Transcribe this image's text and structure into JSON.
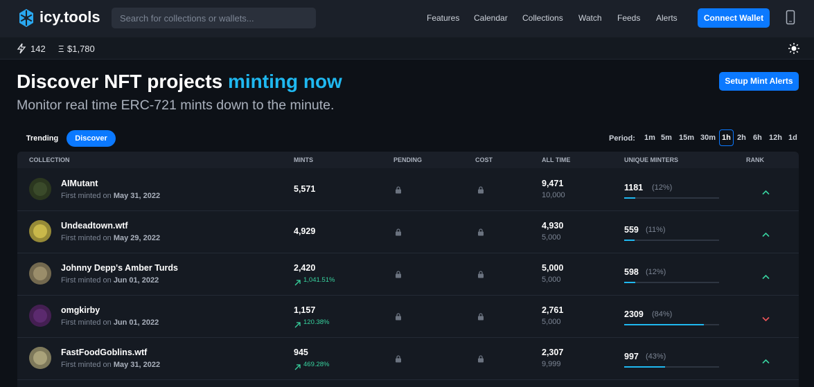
{
  "nav": {
    "logo": "icy.tools",
    "search_placeholder": "Search for collections or wallets...",
    "links": [
      "Features",
      "Calendar",
      "Collections",
      "Watch",
      "Feeds",
      "Alerts"
    ],
    "button": "Connect Wallet"
  },
  "stats": {
    "gas": "142",
    "eth_symbol": "Ξ",
    "eth_price": "$1,780"
  },
  "hero": {
    "title": "Discover NFT projects",
    "highlight": "minting now",
    "subtitle": "Monitor real time ERC-721 mints down to the minute.",
    "button": "Setup Mint Alerts"
  },
  "tabs": {
    "items": [
      "Trending",
      "Discover"
    ],
    "active": 1
  },
  "period": {
    "label": "Period:",
    "options": [
      "1m",
      "5m",
      "15m",
      "30m",
      "1h",
      "2h",
      "6h",
      "12h",
      "1d"
    ],
    "active": 4
  },
  "table": {
    "columns": [
      "COLLECTION",
      "MINTS",
      "PENDING",
      "COST",
      "ALL TIME",
      "UNIQUE MINTERS",
      "RANK"
    ],
    "rows": [
      {
        "name": "AIMutant",
        "first_prefix": "First minted on",
        "date": "May 31, 2022",
        "mints": "5,571",
        "change": null,
        "all_time": "9,471",
        "supply": "10,000",
        "minters": "1181",
        "pct": 12,
        "pct_label": "(12%)",
        "rank": "up",
        "avatar": "#3a4a2a"
      },
      {
        "name": "Undeadtown.wtf",
        "first_prefix": "First minted on",
        "date": "May 29, 2022",
        "mints": "4,929",
        "change": null,
        "all_time": "4,930",
        "supply": "5,000",
        "minters": "559",
        "pct": 11,
        "pct_label": "(11%)",
        "rank": "up",
        "avatar": "#c9b84a"
      },
      {
        "name": "Johnny Depp's Amber Turds",
        "first_prefix": "First minted on",
        "date": "Jun 01, 2022",
        "mints": "2,420",
        "change": "1,041.51%",
        "all_time": "5,000",
        "supply": "5,000",
        "minters": "598",
        "pct": 12,
        "pct_label": "(12%)",
        "rank": "up",
        "avatar": "#9a8d6a"
      },
      {
        "name": "omgkirby",
        "first_prefix": "First minted on",
        "date": "Jun 01, 2022",
        "mints": "1,157",
        "change": "120.38%",
        "all_time": "2,761",
        "supply": "5,000",
        "minters": "2309",
        "pct": 84,
        "pct_label": "(84%)",
        "rank": "down",
        "avatar": "#5b2a6e"
      },
      {
        "name": "FastFoodGoblins.wtf",
        "first_prefix": "First minted on",
        "date": "May 31, 2022",
        "mints": "945",
        "change": "469.28%",
        "all_time": "2,307",
        "supply": "9,999",
        "minters": "997",
        "pct": 43,
        "pct_label": "(43%)",
        "rank": "up",
        "avatar": "#a9a27a"
      }
    ]
  }
}
